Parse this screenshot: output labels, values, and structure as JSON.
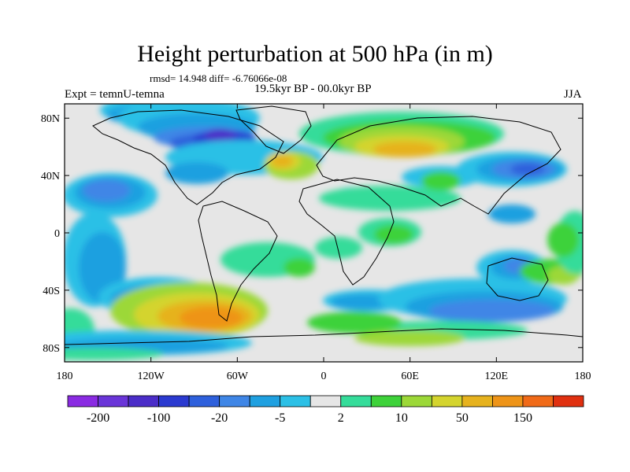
{
  "title": "Height perturbation at 500 hPa (in m)",
  "stats": "rmsd= 14.948 diff= -6.76066e-08",
  "experiment": "Expt = temnU-temna",
  "period": "19.5kyr BP - 00.0kyr BP",
  "season": "JJA",
  "x_ticks": [
    {
      "lon": -180,
      "label": "180"
    },
    {
      "lon": -120,
      "label": "120W"
    },
    {
      "lon": -60,
      "label": "60W"
    },
    {
      "lon": 0,
      "label": "0"
    },
    {
      "lon": 60,
      "label": "60E"
    },
    {
      "lon": 120,
      "label": "120E"
    },
    {
      "lon": 180,
      "label": "180"
    }
  ],
  "y_ticks": [
    {
      "lat": 80,
      "label": "80N"
    },
    {
      "lat": 40,
      "label": "40N"
    },
    {
      "lat": 0,
      "label": "0"
    },
    {
      "lat": -40,
      "label": "40S"
    },
    {
      "lat": -80,
      "label": "80S"
    }
  ],
  "colorbar": {
    "colors": [
      "#8a2be2",
      "#6a35d8",
      "#4b2dc8",
      "#2b3ad0",
      "#2e60dc",
      "#3f86e6",
      "#1fa0e0",
      "#2cc0e6",
      "#e6e6e6",
      "#35dc9a",
      "#3ed23a",
      "#9cd838",
      "#d4d42e",
      "#e6b21e",
      "#ee9418",
      "#f06a18",
      "#e03010"
    ],
    "labels": [
      {
        "after": 1,
        "text": "-200"
      },
      {
        "after": 3,
        "text": "-100"
      },
      {
        "after": 5,
        "text": "-20"
      },
      {
        "after": 7,
        "text": "-5"
      },
      {
        "after": 9,
        "text": "2"
      },
      {
        "after": 11,
        "text": "10"
      },
      {
        "after": 13,
        "text": "50"
      },
      {
        "after": 15,
        "text": "150"
      }
    ]
  },
  "field_colors": {
    "neutral": "#e6e6e6",
    "cyan": "#2cc0e6",
    "sky": "#1fa0e0",
    "blue": "#3f86e6",
    "royal": "#2e60dc",
    "deep": "#2b3ad0",
    "violet": "#4b2dc8",
    "teal": "#35dc9a",
    "green": "#3ed23a",
    "lime": "#9cd838",
    "olive": "#d4d42e",
    "amber": "#e6b21e",
    "orange": "#ee9418"
  }
}
